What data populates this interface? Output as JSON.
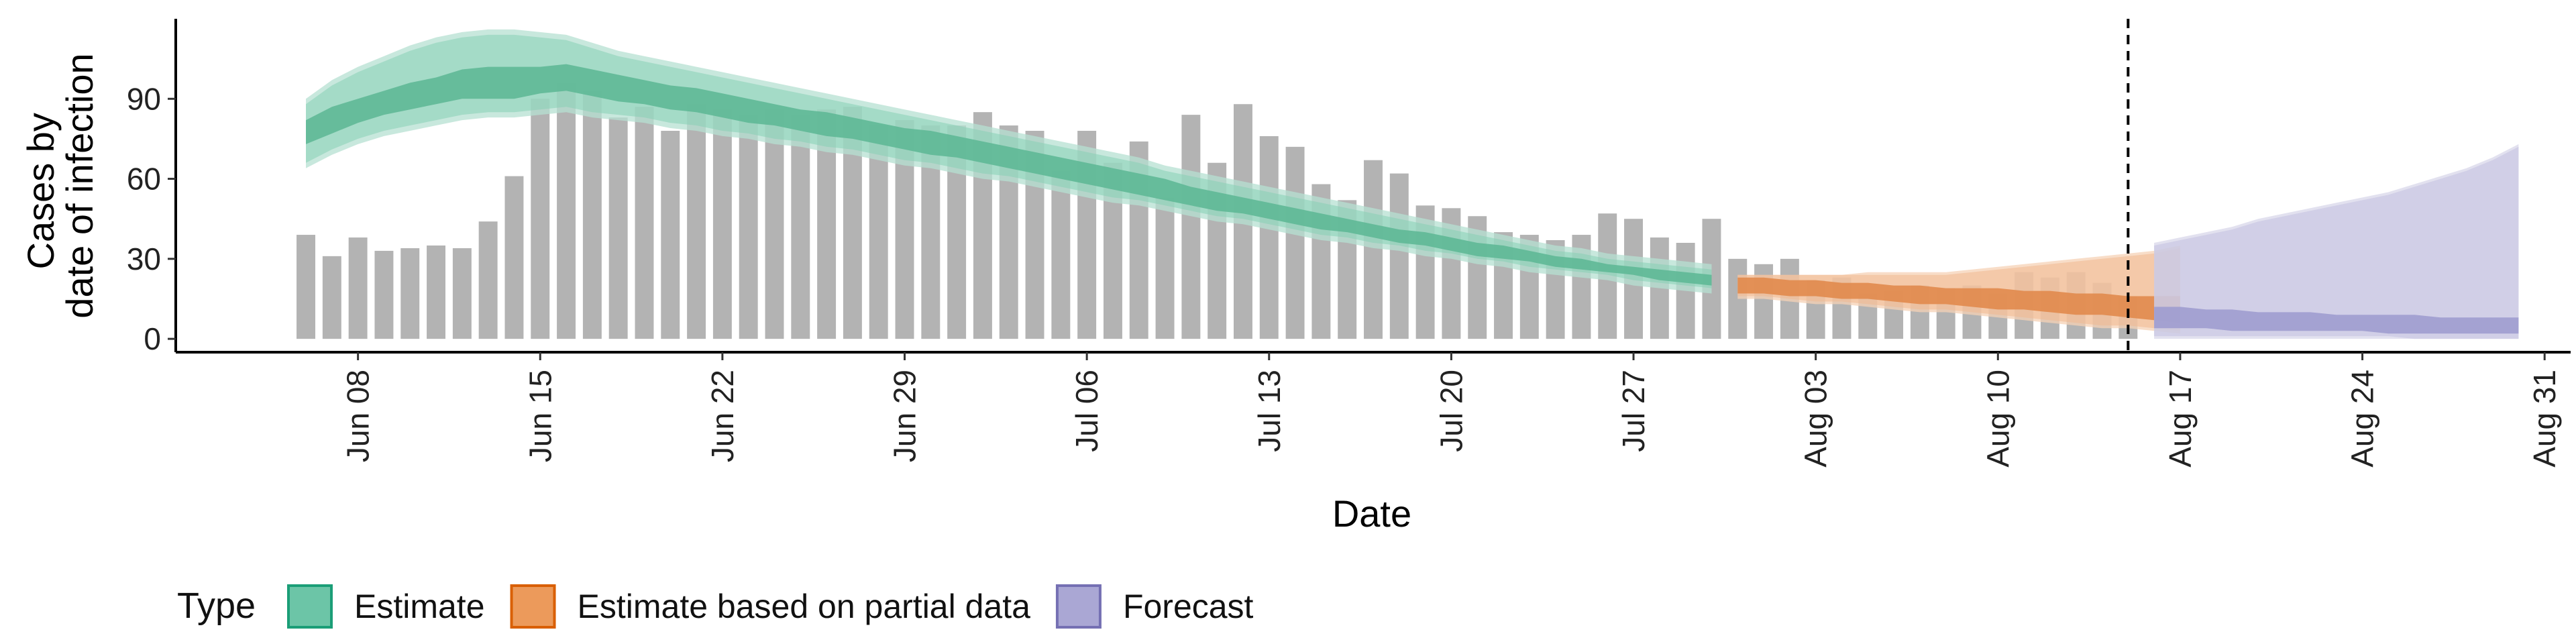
{
  "chart_data": {
    "type": "bar",
    "xlabel": "Date",
    "ylabel_lines": [
      "Cases by",
      "date of infection"
    ],
    "yticks": [
      0,
      30,
      60,
      90
    ],
    "ylim": [
      -5,
      120
    ],
    "grid": false,
    "legend": {
      "title": "Type",
      "placement": "bottom",
      "entries": [
        {
          "label": "Estimate",
          "fill": "#6cc5a7",
          "stroke": "#1b9e77"
        },
        {
          "label": "Estimate based on partial data",
          "fill": "#ec9a5b",
          "stroke": "#d95f02"
        },
        {
          "label": "Forecast",
          "fill": "#aaa7d4",
          "stroke": "#7570b3"
        }
      ]
    },
    "x_ticks": [
      {
        "date": "2020-06-08",
        "label": "Jun 08"
      },
      {
        "date": "2020-06-15",
        "label": "Jun 15"
      },
      {
        "date": "2020-06-22",
        "label": "Jun 22"
      },
      {
        "date": "2020-06-29",
        "label": "Jun 29"
      },
      {
        "date": "2020-07-06",
        "label": "Jul 06"
      },
      {
        "date": "2020-07-13",
        "label": "Jul 13"
      },
      {
        "date": "2020-07-20",
        "label": "Jul 20"
      },
      {
        "date": "2020-07-27",
        "label": "Jul 27"
      },
      {
        "date": "2020-08-03",
        "label": "Aug 03"
      },
      {
        "date": "2020-08-10",
        "label": "Aug 10"
      },
      {
        "date": "2020-08-17",
        "label": "Aug 17"
      },
      {
        "date": "2020-08-24",
        "label": "Aug 24"
      },
      {
        "date": "2020-08-31",
        "label": "Aug 31"
      }
    ],
    "xlim": [
      "2020-06-01",
      "2020-09-01"
    ],
    "vline_date": "2020-08-15",
    "bar_color": "#b3b3b3",
    "bars": {
      "start_date": "2020-06-06",
      "values": [
        39,
        31,
        38,
        33,
        34,
        35,
        34,
        44,
        61,
        90,
        96,
        93,
        83,
        87,
        78,
        88,
        86,
        84,
        86,
        84,
        86,
        87,
        80,
        82,
        80,
        80,
        85,
        80,
        78,
        63,
        78,
        66,
        74,
        53,
        84,
        66,
        88,
        76,
        72,
        58,
        52,
        67,
        62,
        50,
        49,
        46,
        40,
        39,
        37,
        39,
        47,
        45,
        38,
        36,
        45,
        30,
        28,
        30,
        22,
        23,
        17,
        18,
        20,
        19,
        20,
        17,
        25,
        23,
        25,
        21,
        16
      ]
    },
    "series": [
      {
        "name": "Estimate",
        "color_outer": "#b5e0d1",
        "color_mid": "#86cfb4",
        "color_inner": "#5fb896",
        "start_date": "2020-06-06",
        "median": [
          78,
          82,
          85,
          88,
          90,
          93,
          95,
          96,
          96,
          96,
          97,
          95,
          93,
          92,
          91,
          89,
          88,
          86,
          85,
          83,
          81,
          80,
          78,
          76,
          74,
          72,
          70,
          68,
          66,
          64,
          62,
          60,
          58,
          56,
          54,
          52,
          50,
          48,
          46,
          44,
          43,
          41,
          39,
          37,
          35,
          34,
          32,
          31,
          29,
          28,
          26,
          25,
          24,
          23,
          22
        ],
        "inner_lo": [
          73,
          77,
          81,
          84,
          86,
          88,
          90,
          90,
          90,
          92,
          93,
          91,
          89,
          88,
          86,
          85,
          83,
          81,
          80,
          78,
          76,
          75,
          73,
          71,
          69,
          68,
          66,
          64,
          62,
          60,
          58,
          56,
          54,
          52,
          50,
          48,
          47,
          45,
          43,
          41,
          40,
          38,
          36,
          35,
          33,
          31,
          30,
          29,
          27,
          26,
          25,
          24,
          22,
          21,
          20
        ],
        "inner_hi": [
          82,
          87,
          90,
          93,
          96,
          98,
          101,
          102,
          102,
          102,
          103,
          101,
          99,
          97,
          95,
          94,
          92,
          90,
          88,
          86,
          85,
          83,
          81,
          79,
          78,
          76,
          74,
          72,
          70,
          68,
          66,
          64,
          62,
          60,
          57,
          55,
          53,
          51,
          49,
          47,
          45,
          43,
          41,
          40,
          38,
          36,
          35,
          33,
          31,
          30,
          28,
          27,
          26,
          25,
          24
        ],
        "mid_lo": [
          66,
          71,
          75,
          78,
          80,
          82,
          84,
          85,
          85,
          86,
          87,
          85,
          84,
          83,
          81,
          80,
          78,
          77,
          75,
          74,
          72,
          71,
          69,
          67,
          66,
          64,
          62,
          61,
          59,
          57,
          55,
          53,
          52,
          50,
          48,
          46,
          45,
          43,
          41,
          39,
          38,
          36,
          35,
          33,
          32,
          30,
          29,
          27,
          26,
          25,
          24,
          22,
          21,
          20,
          19
        ],
        "mid_hi": [
          88,
          95,
          100,
          104,
          108,
          111,
          113,
          114,
          114,
          113,
          112,
          109,
          106,
          104,
          102,
          100,
          98,
          96,
          94,
          92,
          90,
          88,
          86,
          84,
          82,
          80,
          78,
          76,
          74,
          72,
          70,
          68,
          66,
          63,
          61,
          59,
          57,
          55,
          53,
          51,
          49,
          47,
          45,
          43,
          41,
          39,
          37,
          35,
          33,
          32,
          30,
          29,
          28,
          27,
          26
        ],
        "outer_lo": [
          64,
          69,
          73,
          76,
          78,
          80,
          82,
          83,
          83,
          84,
          85,
          83,
          82,
          81,
          79,
          78,
          76,
          75,
          73,
          72,
          70,
          69,
          67,
          65,
          64,
          62,
          60,
          59,
          57,
          55,
          53,
          51,
          50,
          48,
          46,
          44,
          43,
          41,
          39,
          37,
          36,
          34,
          33,
          31,
          30,
          28,
          27,
          25,
          24,
          23,
          22,
          20,
          19,
          18,
          17
        ],
        "outer_hi": [
          90,
          97,
          102,
          106,
          110,
          113,
          115,
          116,
          116,
          115,
          114,
          111,
          108,
          106,
          104,
          102,
          100,
          98,
          96,
          94,
          92,
          90,
          88,
          86,
          84,
          82,
          80,
          78,
          76,
          74,
          72,
          70,
          68,
          65,
          63,
          61,
          59,
          57,
          55,
          53,
          51,
          49,
          47,
          45,
          43,
          41,
          39,
          37,
          35,
          34,
          32,
          31,
          30,
          29,
          28
        ]
      },
      {
        "name": "Estimate based on partial data",
        "color_outer": "#f6d2b6",
        "color_mid": "#f0b890",
        "color_inner": "#e18a4c",
        "start_date": "2020-07-31",
        "median": [
          20,
          20,
          19,
          19,
          18,
          18,
          17,
          17,
          16,
          16,
          15,
          15,
          14,
          14,
          13,
          12,
          12,
          11
        ],
        "inner_lo": [
          17,
          17,
          16,
          16,
          15,
          15,
          14,
          13,
          13,
          12,
          11,
          11,
          10,
          9,
          9,
          8,
          7,
          6
        ],
        "inner_hi": [
          23,
          23,
          22,
          22,
          21,
          21,
          20,
          20,
          19,
          19,
          19,
          18,
          18,
          17,
          17,
          16,
          16,
          16
        ],
        "mid_lo": [
          16,
          16,
          15,
          14,
          14,
          13,
          12,
          11,
          11,
          10,
          9,
          8,
          7,
          6,
          5,
          5,
          4,
          3
        ],
        "mid_hi": [
          24,
          24,
          24,
          24,
          24,
          24,
          24,
          24,
          24,
          25,
          26,
          27,
          28,
          29,
          30,
          31,
          32,
          34
        ],
        "outer_lo": [
          15,
          15,
          14,
          13,
          13,
          12,
          11,
          10,
          10,
          9,
          8,
          7,
          6,
          5,
          4,
          4,
          3,
          2
        ],
        "outer_hi": [
          24,
          24,
          24,
          24,
          24,
          25,
          25,
          25,
          25,
          26,
          27,
          28,
          29,
          30,
          31,
          32,
          33,
          35
        ]
      },
      {
        "name": "Forecast",
        "color_outer": "#d8d7ea",
        "color_mid": "#c3c1e0",
        "color_inner": "#9f9ccf",
        "start_date": "2020-08-16",
        "median": [
          8,
          8,
          7,
          7,
          7,
          6,
          6,
          6,
          6,
          5,
          5,
          5,
          5,
          5,
          5
        ],
        "inner_lo": [
          4,
          4,
          4,
          3,
          3,
          3,
          3,
          3,
          3,
          2,
          2,
          2,
          2,
          2,
          2
        ],
        "inner_hi": [
          12,
          12,
          11,
          11,
          10,
          10,
          10,
          9,
          9,
          9,
          9,
          8,
          8,
          8,
          8
        ],
        "mid_lo": [
          1,
          1,
          1,
          1,
          1,
          1,
          1,
          1,
          1,
          1,
          0,
          0,
          0,
          0,
          0
        ],
        "mid_hi": [
          35,
          37,
          39,
          41,
          44,
          46,
          48,
          50,
          52,
          54,
          57,
          60,
          63,
          67,
          72
        ],
        "outer_lo": [
          0,
          0,
          0,
          0,
          0,
          0,
          0,
          0,
          0,
          0,
          0,
          0,
          0,
          0,
          0
        ],
        "outer_hi": [
          36,
          38,
          40,
          42,
          45,
          47,
          49,
          51,
          53,
          55,
          58,
          61,
          64,
          68,
          73
        ]
      }
    ]
  }
}
